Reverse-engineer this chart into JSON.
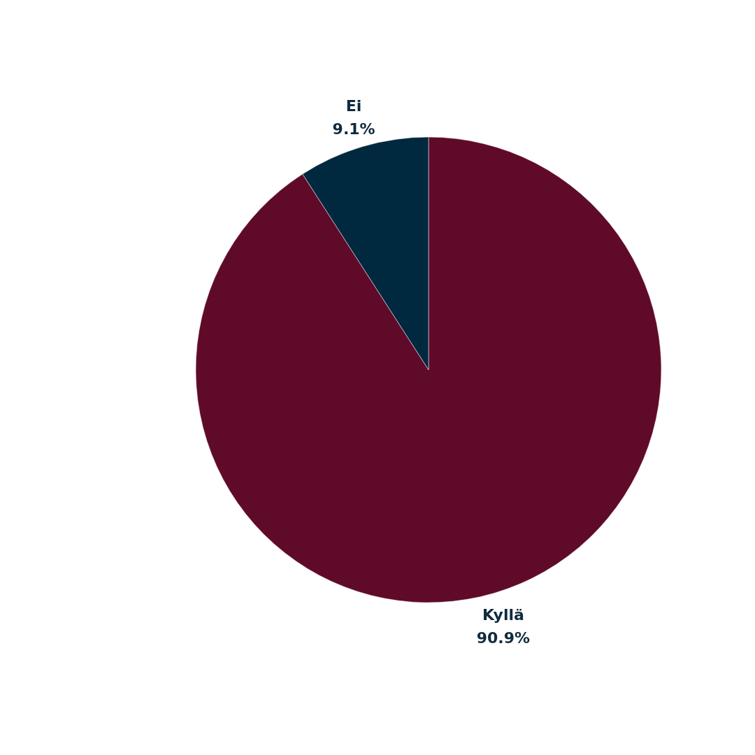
{
  "chart_data": {
    "type": "pie",
    "categories": [
      "Kyllä",
      "Ei"
    ],
    "values": [
      90.9,
      9.1
    ],
    "colors": [
      "#600a2a",
      "#00283e"
    ],
    "value_labels": [
      "90.9%",
      "9.1%"
    ],
    "legend": false
  }
}
